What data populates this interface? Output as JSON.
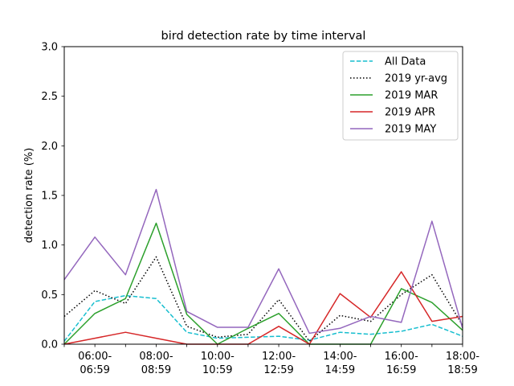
{
  "chart_data": {
    "type": "line",
    "title": "bird detection rate by time interval",
    "xlabel": "",
    "ylabel": "detection rate (%)",
    "ylim": [
      0,
      3.0
    ],
    "y_ticks": [
      "0.0",
      "0.5",
      "1.0",
      "1.5",
      "2.0",
      "2.5",
      "3.0"
    ],
    "x_tick_labels": [
      {
        "line1": "06:00-",
        "line2": "06:59"
      },
      {
        "line1": "08:00-",
        "line2": "08:59"
      },
      {
        "line1": "10:00-",
        "line2": "10:59"
      },
      {
        "line1": "12:00-",
        "line2": "12:59"
      },
      {
        "line1": "14:00-",
        "line2": "14:59"
      },
      {
        "line1": "16:00-",
        "line2": "16:59"
      },
      {
        "line1": "18:00-",
        "line2": "18:59"
      }
    ],
    "x": [
      "05:00-05:59",
      "06:00-06:59",
      "07:00-07:59",
      "08:00-08:59",
      "09:00-09:59",
      "10:00-10:59",
      "11:00-11:59",
      "12:00-12:59",
      "13:00-13:59",
      "14:00-14:59",
      "15:00-15:59",
      "16:00-16:59",
      "17:00-17:59",
      "18:00-18:59"
    ],
    "legend_position": "top-right",
    "grid": false,
    "series": [
      {
        "name": "All Data",
        "color": "#17becf",
        "style": "dashed",
        "values": [
          0.03,
          0.43,
          0.49,
          0.46,
          0.12,
          0.06,
          0.07,
          0.08,
          0.04,
          0.12,
          0.1,
          0.13,
          0.2,
          0.08
        ]
      },
      {
        "name": "2019 yr-avg",
        "color": "#000000",
        "style": "dotted",
        "values": [
          0.28,
          0.54,
          0.41,
          0.88,
          0.18,
          0.07,
          0.1,
          0.45,
          0.03,
          0.29,
          0.23,
          0.5,
          0.7,
          0.19
        ]
      },
      {
        "name": "2019 MAR",
        "color": "#2ca02c",
        "style": "solid",
        "values": [
          0.0,
          0.31,
          0.46,
          1.22,
          0.3,
          0.0,
          0.16,
          0.31,
          0.0,
          0.0,
          0.0,
          0.56,
          0.42,
          0.14
        ]
      },
      {
        "name": "2019 APR",
        "color": "#d62728",
        "style": "solid",
        "values": [
          0.0,
          0.06,
          0.12,
          0.06,
          0.0,
          0.0,
          0.0,
          0.18,
          0.0,
          0.51,
          0.27,
          0.73,
          0.23,
          0.28
        ]
      },
      {
        "name": "2019 MAY",
        "color": "#9467bd",
        "style": "solid",
        "values": [
          0.65,
          1.08,
          0.7,
          1.56,
          0.33,
          0.17,
          0.17,
          0.76,
          0.11,
          0.16,
          0.28,
          0.22,
          1.24,
          0.16
        ]
      }
    ]
  }
}
